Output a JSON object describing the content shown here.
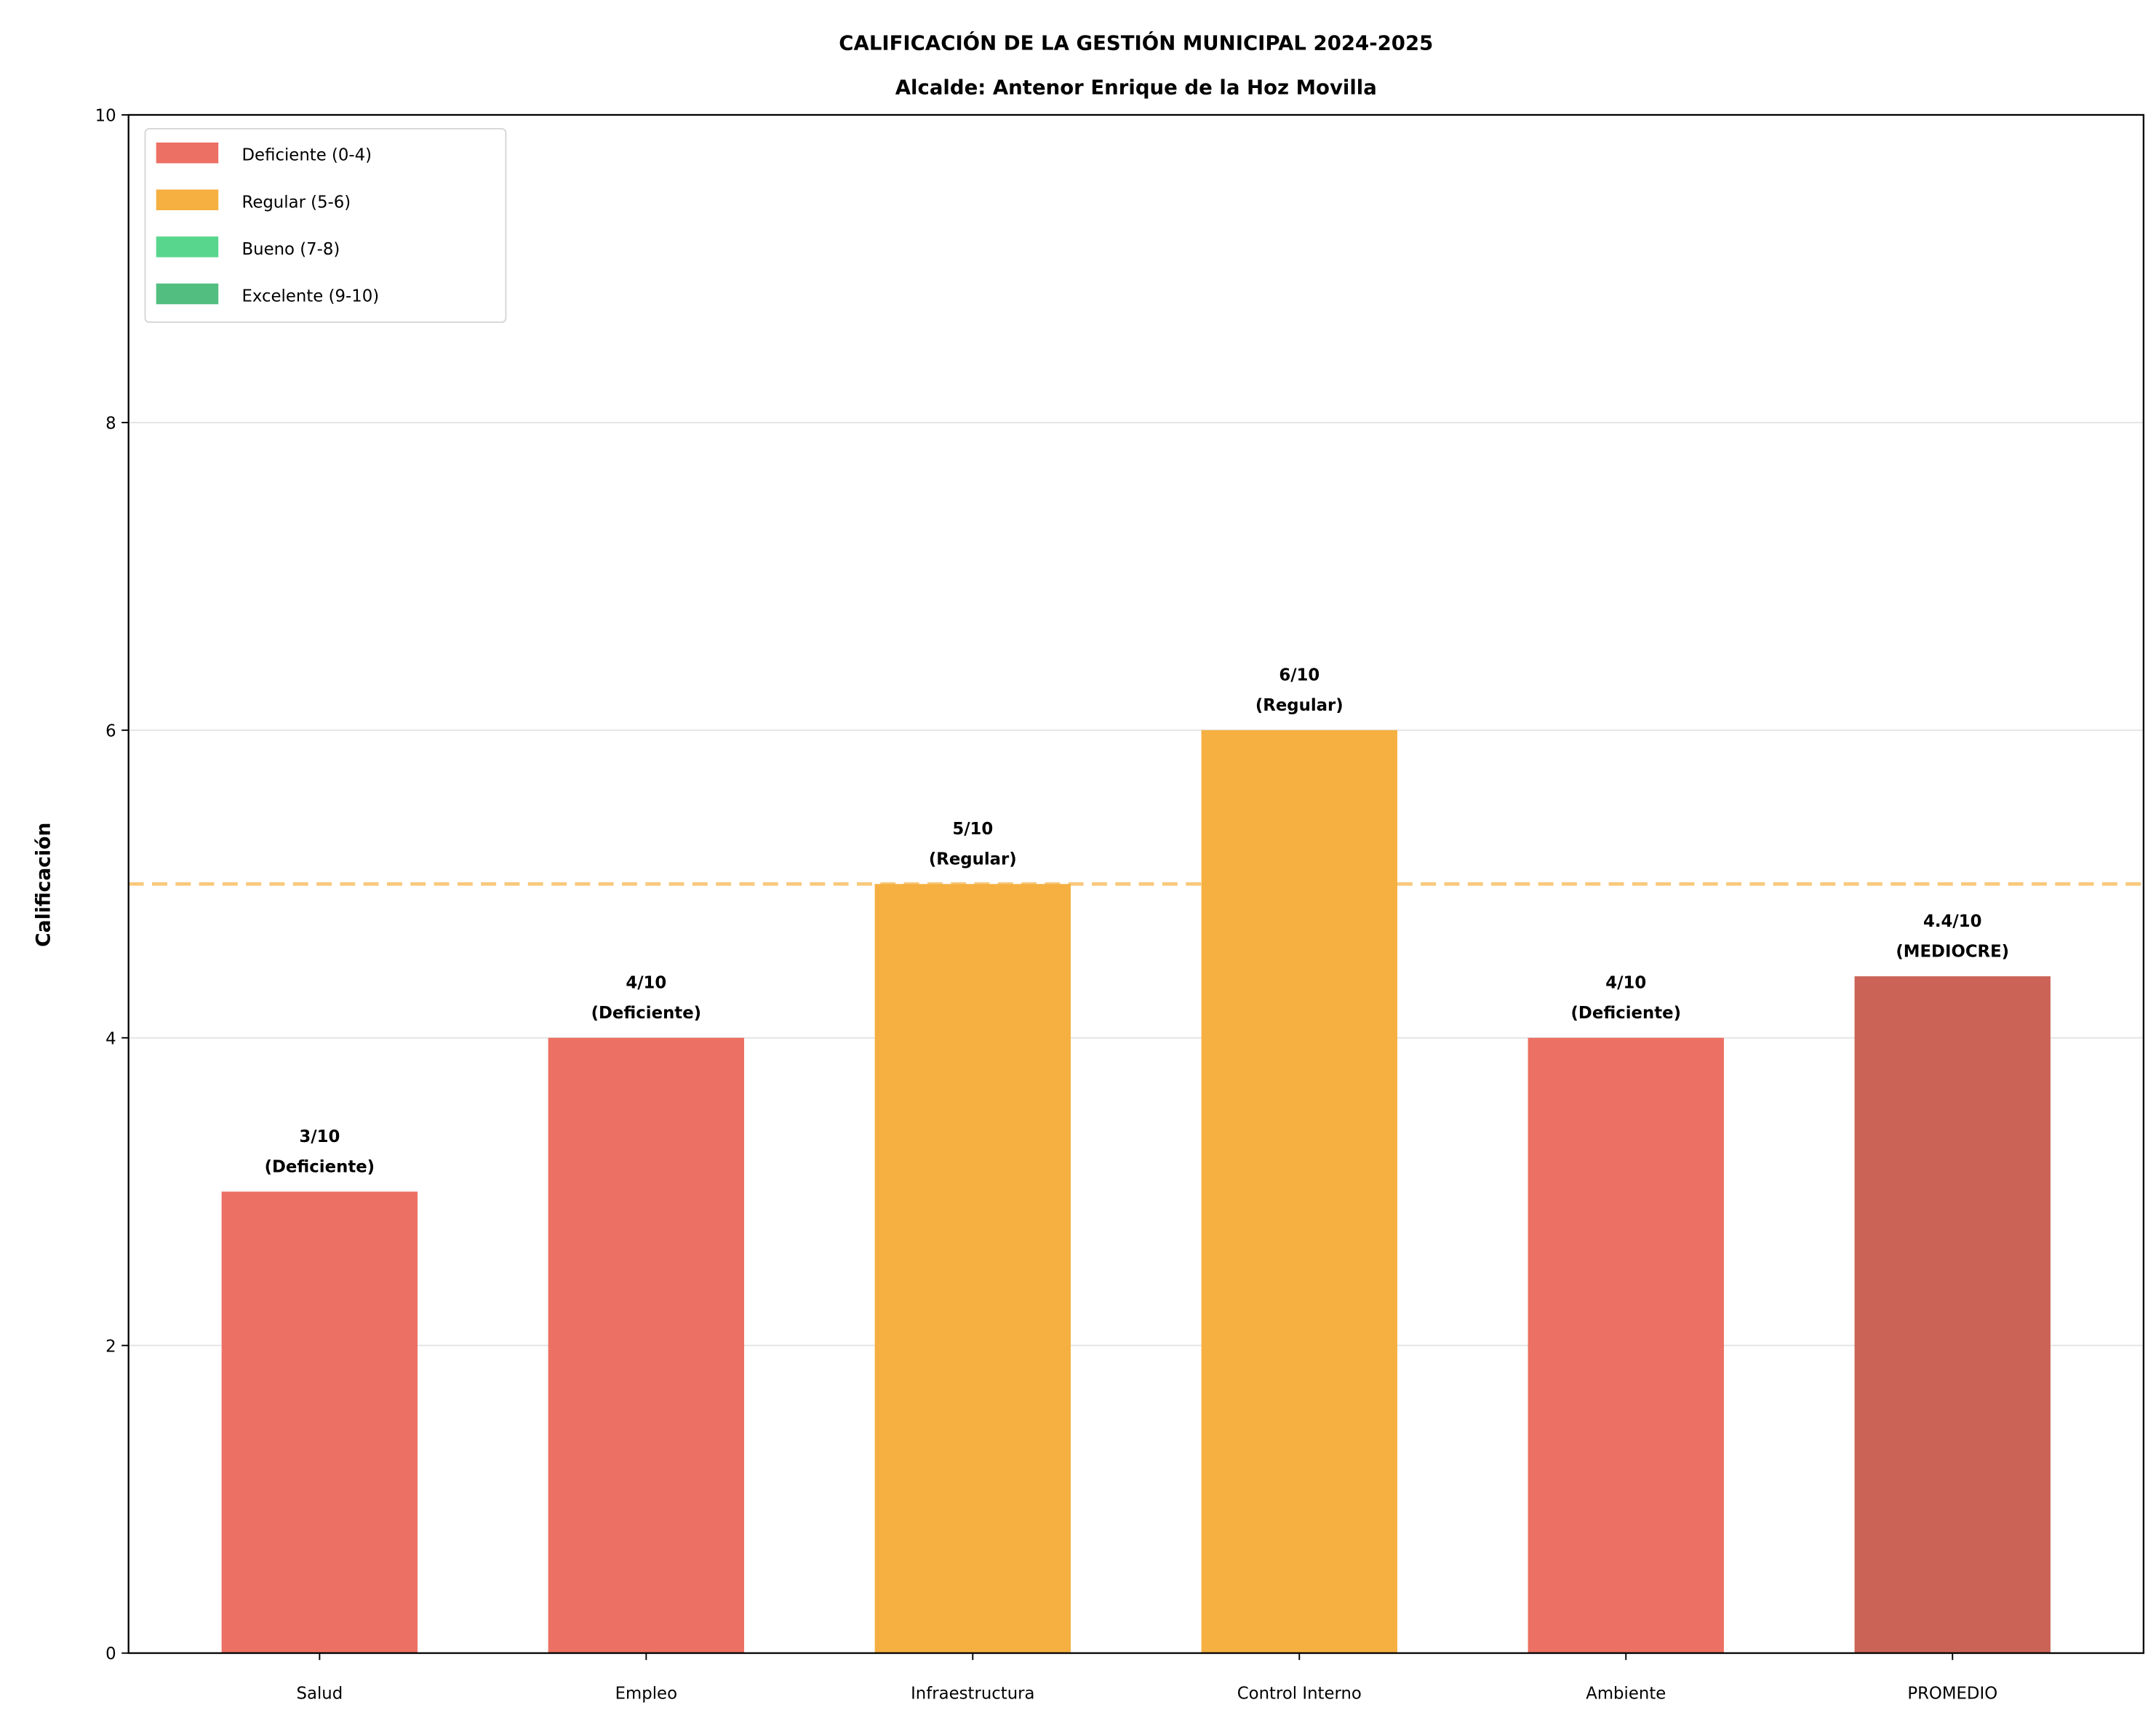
{
  "chart_data": {
    "type": "bar",
    "title": "CALIFICACIÓN DE LA GESTIÓN MUNICIPAL 2024-2025",
    "subtitle": "Alcalde: Antenor Enrique de la Hoz Movilla",
    "xlabel": "",
    "ylabel": "Calificación",
    "ylim": [
      0,
      10
    ],
    "yticks": [
      "0",
      "2",
      "4",
      "6",
      "8",
      "10"
    ],
    "grid": "y",
    "categories": [
      "Salud",
      "Empleo",
      "Infraestructura",
      "Control Interno",
      "Ambiente",
      "PROMEDIO"
    ],
    "values": [
      3,
      4,
      5,
      6,
      4,
      4.4
    ],
    "bar_colors": [
      "#EC7063",
      "#EC7063",
      "#F5B041",
      "#F5B041",
      "#EC7063",
      "#CB6357"
    ],
    "data_labels": [
      [
        "3/10",
        "(Deficiente)"
      ],
      [
        "4/10",
        "(Deficiente)"
      ],
      [
        "5/10",
        "(Regular)"
      ],
      [
        "6/10",
        "(Regular)"
      ],
      [
        "4/10",
        "(Deficiente)"
      ],
      [
        "4.4/10",
        "(MEDIOCRE)"
      ]
    ],
    "reference_line": {
      "y": 5,
      "style": "dashed",
      "color": "#F5B041"
    },
    "legend": {
      "placement": "top-left",
      "entries": [
        {
          "label": "Deficiente (0-4)",
          "color": "#EC7063"
        },
        {
          "label": "Regular (5-6)",
          "color": "#F5B041"
        },
        {
          "label": "Bueno (7-8)",
          "color": "#58D68D"
        },
        {
          "label": "Excelente (9-10)",
          "color": "#52BE80"
        }
      ]
    }
  }
}
